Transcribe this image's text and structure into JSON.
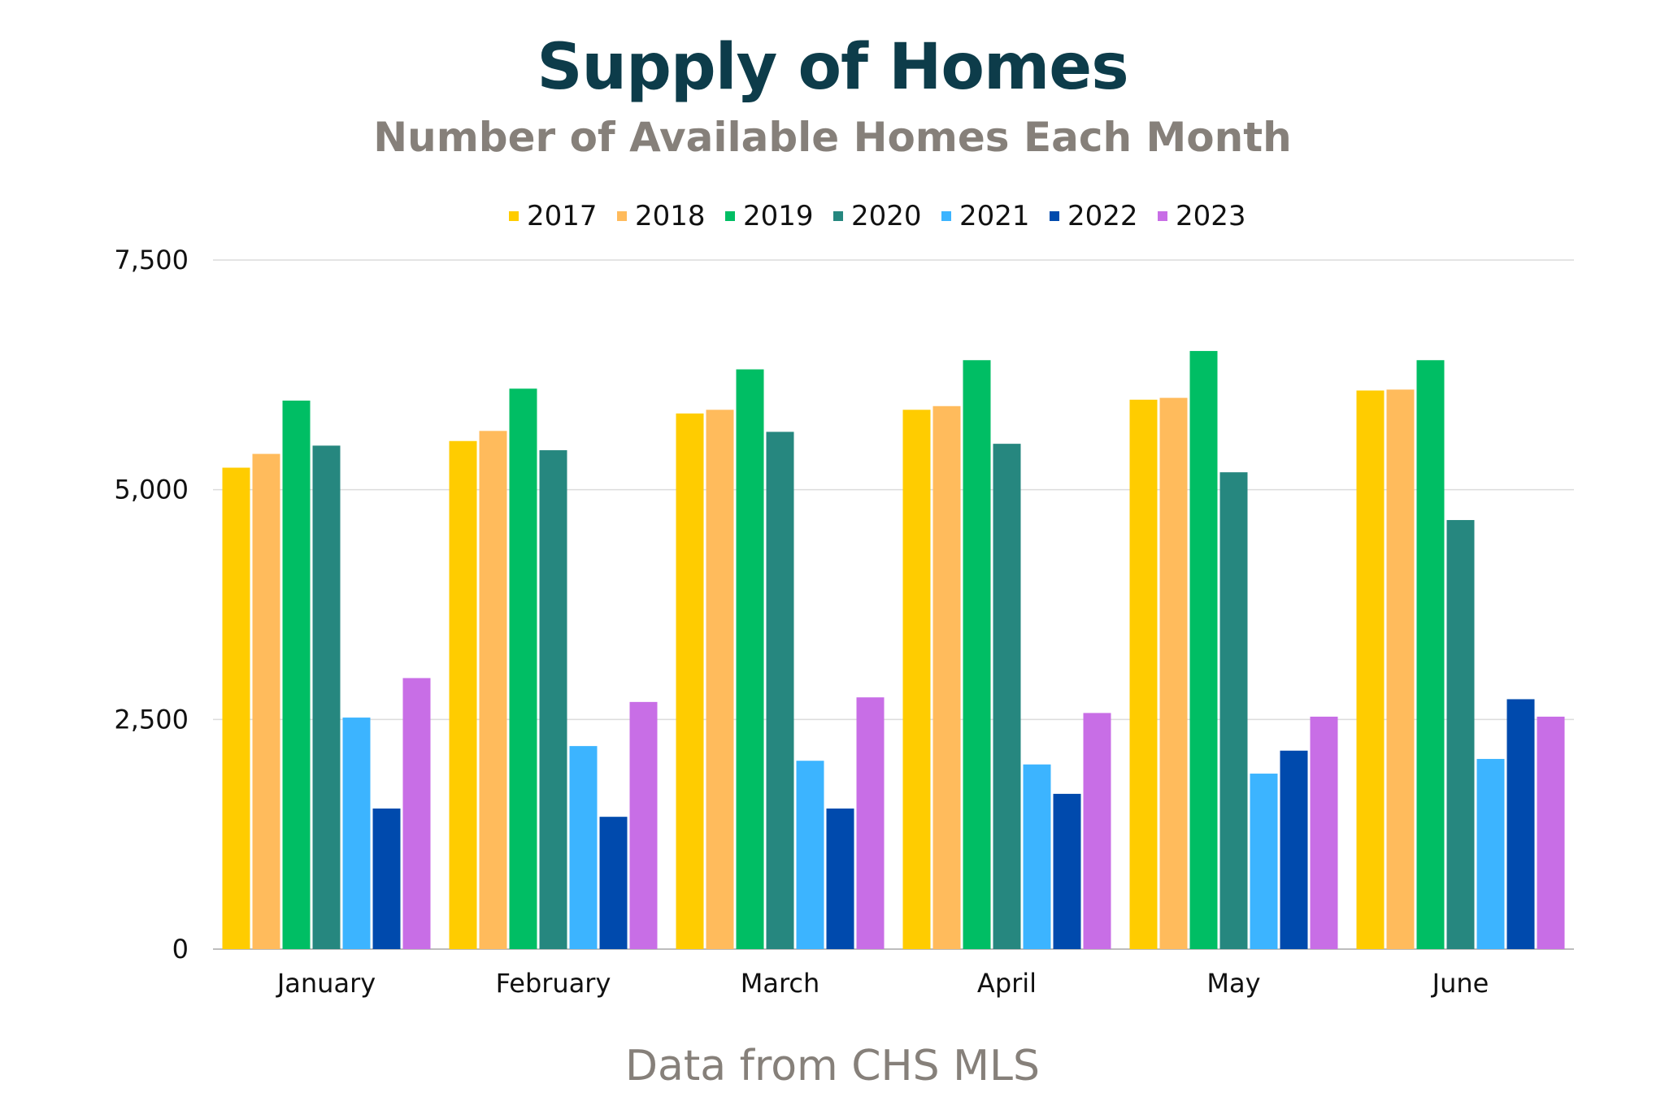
{
  "chart_data": {
    "type": "bar",
    "title": "Supply of Homes",
    "subtitle": "Number of Available Homes Each Month",
    "source": "Data from CHS MLS",
    "categories": [
      "January",
      "February",
      "March",
      "April",
      "May",
      "June"
    ],
    "series": [
      {
        "name": "2017",
        "color": "#ffcc00",
        "values": [
          5240,
          5530,
          5830,
          5870,
          5980,
          6080
        ]
      },
      {
        "name": "2018",
        "color": "#ffbb5c",
        "values": [
          5390,
          5640,
          5870,
          5910,
          6000,
          6090
        ]
      },
      {
        "name": "2019",
        "color": "#00be64",
        "values": [
          5970,
          6100,
          6310,
          6410,
          6510,
          6410
        ]
      },
      {
        "name": "2020",
        "color": "#26877f",
        "values": [
          5480,
          5430,
          5630,
          5500,
          5190,
          4670
        ]
      },
      {
        "name": "2021",
        "color": "#3cb4ff",
        "values": [
          2520,
          2210,
          2050,
          2010,
          1910,
          2070
        ]
      },
      {
        "name": "2022",
        "color": "#004aad",
        "values": [
          1530,
          1440,
          1530,
          1690,
          2160,
          2720
        ]
      },
      {
        "name": "2023",
        "color": "#c86ee6",
        "values": [
          2950,
          2690,
          2740,
          2570,
          2530,
          2530
        ]
      }
    ],
    "yticks": [
      "0",
      "2,500",
      "5,000",
      "7,500"
    ],
    "ytick_values": [
      0,
      2500,
      5000,
      7500
    ],
    "ylim": [
      0,
      7500
    ],
    "grid": true,
    "legend_position": "top"
  }
}
